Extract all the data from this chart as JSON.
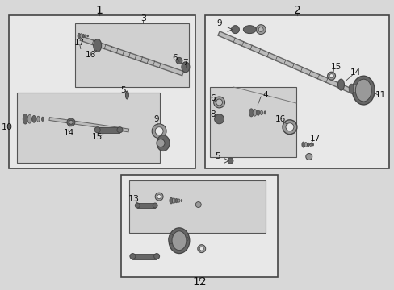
{
  "bg_color": "#d8d8d8",
  "box1_fc": "#e8e8e8",
  "box_ec": "#444444",
  "inner_fc": "#d0d0d0",
  "part_dark": "#444444",
  "part_mid": "#666666",
  "part_light": "#999999",
  "part_lighter": "#bbbbbb",
  "text_color": "#111111",
  "white": "#f5f5f5"
}
